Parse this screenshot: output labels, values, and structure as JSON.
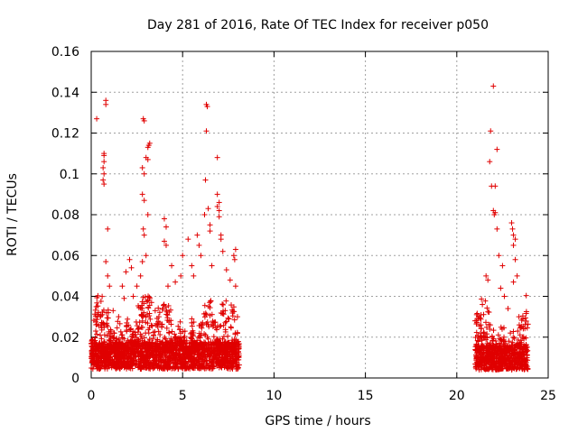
{
  "chart_data": {
    "type": "scatter",
    "title": "Day 281 of 2016, Rate Of TEC Index for receiver p050",
    "xlabel": "GPS time / hours",
    "ylabel": "ROTI / TECUs",
    "xlim": [
      0,
      25
    ],
    "ylim": [
      0,
      0.16
    ],
    "xticks": [
      0,
      5,
      10,
      15,
      20,
      25
    ],
    "xtick_labels": [
      "0",
      "5",
      "10",
      "15",
      "20",
      "25"
    ],
    "yticks": [
      0,
      0.02,
      0.04,
      0.06,
      0.08,
      0.1,
      0.12,
      0.14,
      0.16
    ],
    "ytick_labels": [
      "0",
      "0.02",
      "0.04",
      "0.06",
      "0.08",
      "0.1",
      "0.12",
      "0.14",
      "0.16"
    ],
    "grid": true,
    "marker": "+",
    "marker_color": "#e00000",
    "series": [
      {
        "name": "ROTI",
        "points": [
          [
            0.3,
            0.127
          ],
          [
            0.8,
            0.134
          ],
          [
            0.8,
            0.136
          ],
          [
            0.7,
            0.11
          ],
          [
            0.7,
            0.109
          ],
          [
            0.7,
            0.106
          ],
          [
            0.65,
            0.103
          ],
          [
            0.7,
            0.1
          ],
          [
            0.65,
            0.097
          ],
          [
            0.7,
            0.095
          ],
          [
            0.9,
            0.073
          ],
          [
            0.4,
            0.032
          ],
          [
            0.5,
            0.03
          ],
          [
            0.8,
            0.057
          ],
          [
            0.9,
            0.05
          ],
          [
            1.0,
            0.045
          ],
          [
            1.2,
            0.033
          ],
          [
            1.5,
            0.03
          ],
          [
            1.7,
            0.045
          ],
          [
            1.8,
            0.039
          ],
          [
            1.9,
            0.052
          ],
          [
            2.1,
            0.058
          ],
          [
            2.2,
            0.054
          ],
          [
            2.3,
            0.04
          ],
          [
            2.5,
            0.045
          ],
          [
            2.7,
            0.05
          ],
          [
            2.85,
            0.127
          ],
          [
            2.9,
            0.126
          ],
          [
            2.8,
            0.103
          ],
          [
            2.9,
            0.1
          ],
          [
            3.0,
            0.108
          ],
          [
            3.1,
            0.107
          ],
          [
            3.2,
            0.115
          ],
          [
            3.15,
            0.114
          ],
          [
            3.1,
            0.113
          ],
          [
            2.8,
            0.09
          ],
          [
            2.9,
            0.087
          ],
          [
            2.85,
            0.073
          ],
          [
            2.9,
            0.07
          ],
          [
            3.1,
            0.08
          ],
          [
            2.8,
            0.057
          ],
          [
            3.0,
            0.06
          ],
          [
            3.3,
            0.037
          ],
          [
            3.5,
            0.033
          ],
          [
            3.7,
            0.03
          ],
          [
            4.0,
            0.067
          ],
          [
            4.1,
            0.065
          ],
          [
            4.0,
            0.078
          ],
          [
            4.1,
            0.074
          ],
          [
            4.2,
            0.045
          ],
          [
            4.4,
            0.055
          ],
          [
            4.6,
            0.047
          ],
          [
            4.9,
            0.05
          ],
          [
            5.0,
            0.06
          ],
          [
            5.3,
            0.068
          ],
          [
            5.5,
            0.055
          ],
          [
            5.6,
            0.05
          ],
          [
            5.8,
            0.07
          ],
          [
            5.9,
            0.065
          ],
          [
            6.0,
            0.06
          ],
          [
            6.2,
            0.08
          ],
          [
            6.3,
            0.134
          ],
          [
            6.35,
            0.133
          ],
          [
            6.3,
            0.121
          ],
          [
            6.25,
            0.097
          ],
          [
            6.4,
            0.083
          ],
          [
            6.5,
            0.075
          ],
          [
            6.5,
            0.072
          ],
          [
            6.6,
            0.055
          ],
          [
            6.9,
            0.108
          ],
          [
            6.9,
            0.09
          ],
          [
            7.0,
            0.086
          ],
          [
            6.9,
            0.084
          ],
          [
            7.0,
            0.082
          ],
          [
            7.0,
            0.079
          ],
          [
            7.1,
            0.07
          ],
          [
            7.1,
            0.068
          ],
          [
            7.2,
            0.062
          ],
          [
            7.4,
            0.053
          ],
          [
            7.6,
            0.048
          ],
          [
            7.8,
            0.06
          ],
          [
            7.9,
            0.063
          ],
          [
            7.85,
            0.058
          ],
          [
            7.9,
            0.045
          ],
          [
            8.0,
            0.03
          ],
          [
            21.0,
            0.028
          ],
          [
            21.2,
            0.03
          ],
          [
            21.4,
            0.036
          ],
          [
            21.6,
            0.05
          ],
          [
            21.7,
            0.048
          ],
          [
            21.8,
            0.106
          ],
          [
            21.85,
            0.121
          ],
          [
            21.9,
            0.094
          ],
          [
            22.0,
            0.143
          ],
          [
            22.0,
            0.082
          ],
          [
            22.1,
            0.081
          ],
          [
            22.2,
            0.112
          ],
          [
            22.1,
            0.094
          ],
          [
            22.05,
            0.08
          ],
          [
            22.2,
            0.073
          ],
          [
            22.3,
            0.06
          ],
          [
            22.4,
            0.044
          ],
          [
            22.5,
            0.055
          ],
          [
            22.6,
            0.04
          ],
          [
            22.8,
            0.034
          ],
          [
            23.0,
            0.076
          ],
          [
            23.05,
            0.073
          ],
          [
            23.1,
            0.07
          ],
          [
            23.2,
            0.068
          ],
          [
            23.1,
            0.065
          ],
          [
            23.2,
            0.058
          ],
          [
            23.3,
            0.05
          ],
          [
            23.1,
            0.047
          ],
          [
            23.4,
            0.03
          ],
          [
            23.6,
            0.02
          ],
          [
            23.8,
            0.016
          ]
        ],
        "dense_bands": [
          {
            "x": [
              0,
              8.1
            ],
            "y_center": 0.011,
            "y_spread": 0.011,
            "y_tail": 0.03
          },
          {
            "x": [
              21.0,
              23.9
            ],
            "y_center": 0.01,
            "y_spread": 0.01,
            "y_tail": 0.028
          }
        ]
      }
    ]
  }
}
